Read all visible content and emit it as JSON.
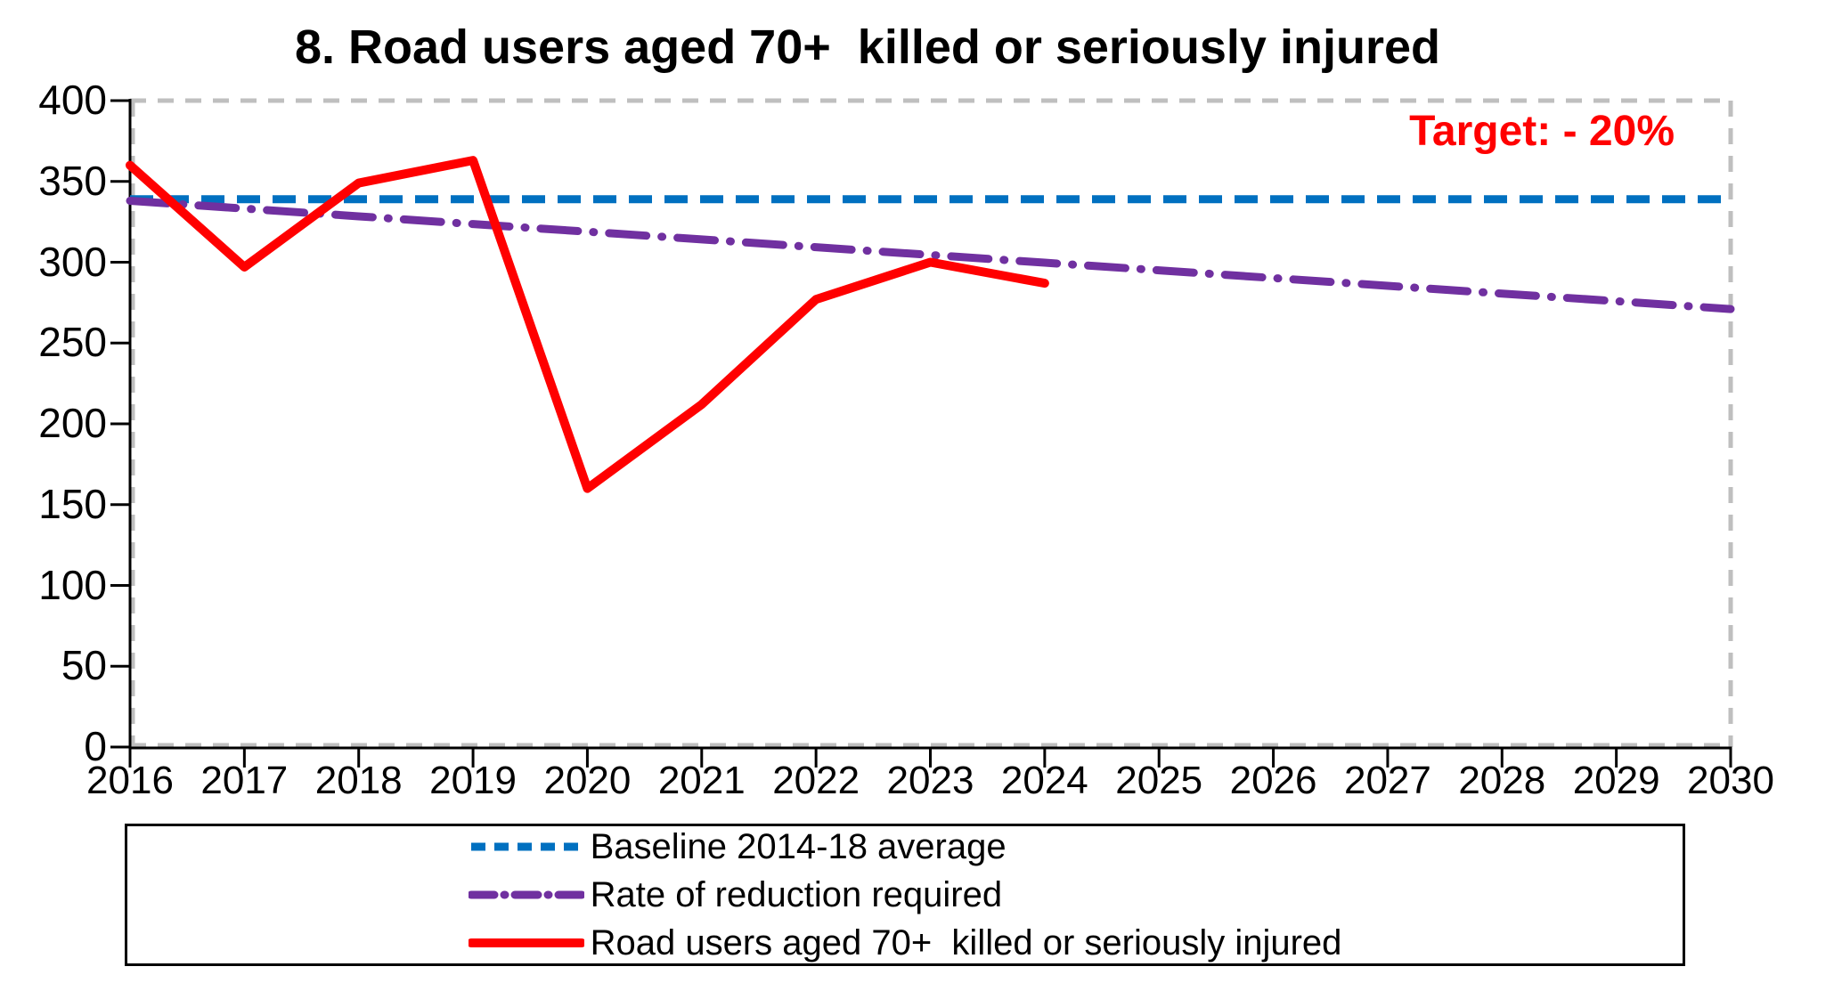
{
  "chart": {
    "title": "8. Road users aged 70+  killed or seriously injured",
    "target_label": "Target: - 20%",
    "target_color": "#ff0000"
  },
  "chart_data": {
    "type": "line",
    "title": "8. Road users aged 70+  killed or seriously injured",
    "annotation": "Target: - 20%",
    "xlabel": "",
    "ylabel": "",
    "xlim": [
      2016,
      2030
    ],
    "ylim": [
      0,
      400
    ],
    "grid": false,
    "legend_position": "bottom",
    "plot_border_color": "#bfbfbf",
    "axis_color": "#000000",
    "x_ticks": [
      2016,
      2017,
      2018,
      2019,
      2020,
      2021,
      2022,
      2023,
      2024,
      2025,
      2026,
      2027,
      2028,
      2029,
      2030
    ],
    "y_ticks": [
      0,
      50,
      100,
      150,
      200,
      250,
      300,
      350,
      400
    ],
    "series": [
      {
        "name": "Baseline 2014-18 average",
        "color": "#0070c0",
        "style": "dashed",
        "x": [
          2016,
          2030
        ],
        "values": [
          339,
          339
        ]
      },
      {
        "name": "Rate of reduction required",
        "color": "#7030a0",
        "style": "dash-dot",
        "x": [
          2016,
          2017,
          2018,
          2019,
          2020,
          2021,
          2022,
          2023,
          2024,
          2025,
          2026,
          2027,
          2028,
          2029,
          2030
        ],
        "values": [
          338,
          333.2,
          328.4,
          323.6,
          318.9,
          314.1,
          309.3,
          304.5,
          299.7,
          295,
          290.2,
          285.4,
          280.6,
          275.9,
          271
        ]
      },
      {
        "name": "Road users aged 70+  killed or seriously injured",
        "color": "#ff0000",
        "style": "solid",
        "x": [
          2016,
          2017,
          2018,
          2019,
          2020,
          2021,
          2022,
          2023,
          2024
        ],
        "values": [
          360,
          297,
          349,
          363,
          160,
          212,
          277,
          300,
          287
        ]
      }
    ]
  }
}
